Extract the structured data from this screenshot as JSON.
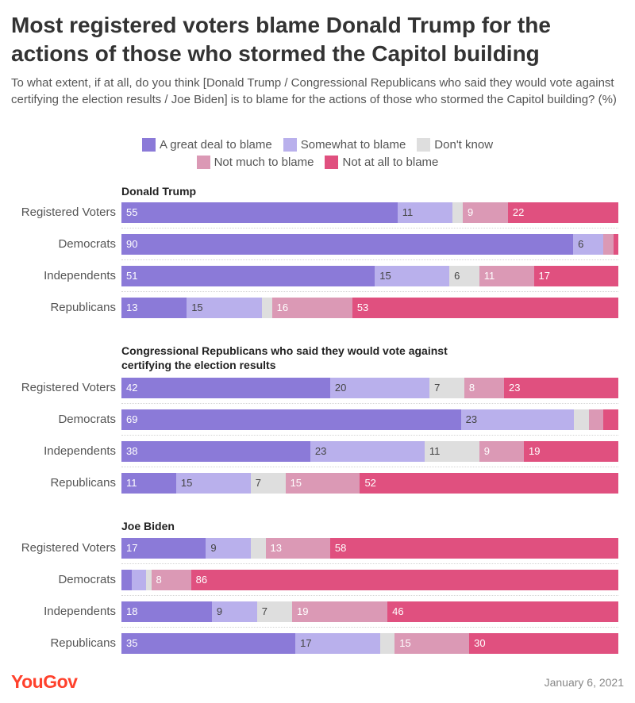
{
  "title": "Most registered voters blame Donald Trump for the actions of those who stormed the Capitol building",
  "subtitle": "To what extent, if at all, do you think [Donald Trump / Congressional Republicans who said they would vote against certifying the election results / Joe Biden] is to blame for the actions of those who stormed the Capitol building? (%)",
  "legend_rows": [
    [
      {
        "label": "A great deal to blame",
        "color": "#8b7ad8"
      },
      {
        "label": "Somewhat to blame",
        "color": "#b9b0ec"
      },
      {
        "label": "Don't know",
        "color": "#dedede"
      }
    ],
    [
      {
        "label": "Not much to blame",
        "color": "#db99b5"
      },
      {
        "label": "Not at all to blame",
        "color": "#e0507f"
      }
    ]
  ],
  "chart_data": {
    "type": "bar",
    "orientation": "horizontal",
    "stacked": true,
    "title": "Most registered voters blame Donald Trump for the actions of those who stormed the Capitol building",
    "series_names": [
      "A great deal to blame",
      "Somewhat to blame",
      "Don't know",
      "Not much to blame",
      "Not at all to blame"
    ],
    "colors": [
      "#8b7ad8",
      "#b9b0ec",
      "#dedede",
      "#db99b5",
      "#e0507f"
    ],
    "label_colors": [
      "#ffffff",
      "#444444",
      "#444444",
      "#ffffff",
      "#ffffff"
    ],
    "panels": [
      {
        "title": "Donald Trump",
        "rows": [
          {
            "label": "Registered Voters",
            "values": [
              55,
              11,
              2,
              9,
              22
            ],
            "labels": [
              "55",
              "11",
              "",
              "9",
              "22"
            ]
          },
          {
            "label": "Democrats",
            "values": [
              90,
              6,
              0,
              2,
              1
            ],
            "labels": [
              "90",
              "6",
              "",
              "",
              ""
            ]
          },
          {
            "label": "Independents",
            "values": [
              51,
              15,
              6,
              11,
              17
            ],
            "labels": [
              "51",
              "15",
              "6",
              "11",
              "17"
            ]
          },
          {
            "label": "Republicans",
            "values": [
              13,
              15,
              2,
              16,
              53
            ],
            "labels": [
              "13",
              "15",
              "",
              "16",
              "53"
            ]
          }
        ]
      },
      {
        "title": "Congressional Republicans who said they would vote against certifying the election results",
        "rows": [
          {
            "label": "Registered Voters",
            "values": [
              42,
              20,
              7,
              8,
              23
            ],
            "labels": [
              "42",
              "20",
              "7",
              "8",
              "23"
            ]
          },
          {
            "label": "Democrats",
            "values": [
              69,
              23,
              3,
              3,
              3
            ],
            "labels": [
              "69",
              "23",
              "",
              "",
              ""
            ]
          },
          {
            "label": "Independents",
            "values": [
              38,
              23,
              11,
              9,
              19
            ],
            "labels": [
              "38",
              "23",
              "11",
              "9",
              "19"
            ]
          },
          {
            "label": "Republicans",
            "values": [
              11,
              15,
              7,
              15,
              52
            ],
            "labels": [
              "11",
              "15",
              "7",
              "15",
              "52"
            ]
          }
        ]
      },
      {
        "title": "Joe Biden",
        "rows": [
          {
            "label": "Registered Voters",
            "values": [
              17,
              9,
              3,
              13,
              58
            ],
            "labels": [
              "17",
              "9",
              "",
              "13",
              "58"
            ]
          },
          {
            "label": "Democrats",
            "values": [
              2,
              3,
              1,
              8,
              86
            ],
            "labels": [
              "",
              "",
              "",
              "8",
              "86"
            ]
          },
          {
            "label": "Independents",
            "values": [
              18,
              9,
              7,
              19,
              46
            ],
            "labels": [
              "18",
              "9",
              "7",
              "19",
              "46"
            ]
          },
          {
            "label": "Republicans",
            "values": [
              35,
              17,
              3,
              15,
              30
            ],
            "labels": [
              "35",
              "17",
              "",
              "15",
              "30"
            ]
          }
        ]
      }
    ]
  },
  "footer": {
    "brand": "YouGov",
    "date": "January 6, 2021"
  }
}
